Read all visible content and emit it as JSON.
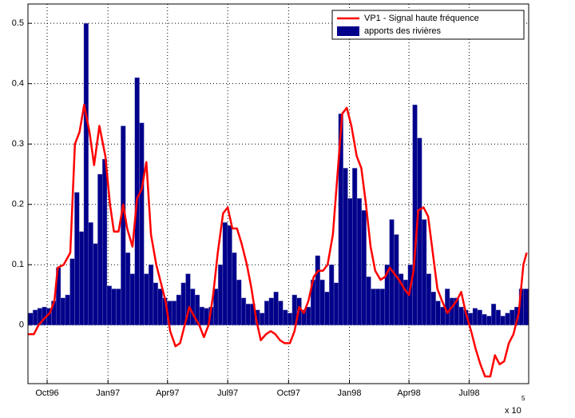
{
  "chart_data": {
    "type": "bar",
    "xlim": [
      -29,
      728
    ],
    "ylim": [
      -0.097,
      0.532
    ],
    "yticks": [
      0,
      0.1,
      0.2,
      0.3,
      0.4,
      0.5
    ],
    "xticks": [
      {
        "value": 0,
        "label": "Oct96"
      },
      {
        "value": 92,
        "label": "Jan97"
      },
      {
        "value": 182,
        "label": "Apr97"
      },
      {
        "value": 273,
        "label": "Jul97"
      },
      {
        "value": 365,
        "label": "Oct97"
      },
      {
        "value": 457,
        "label": "Jan98"
      },
      {
        "value": 547,
        "label": "Apr98"
      },
      {
        "value": 638,
        "label": "Jul98"
      }
    ],
    "grid": true,
    "legend": "upper right",
    "annotations": [
      "x 10",
      "5"
    ],
    "series": [
      {
        "name": "VP1 - Signal haute fréquence",
        "type": "line",
        "color": "#ff0000",
        "x": [
          -29,
          -20,
          -13,
          -5,
          4,
          11,
          16,
          25,
          35,
          42,
          49,
          56,
          64,
          71,
          79,
          88,
          95,
          101,
          108,
          115,
          121,
          129,
          136,
          143,
          150,
          157,
          165,
          172,
          179,
          186,
          194,
          201,
          208,
          215,
          222,
          230,
          237,
          244,
          251,
          258,
          266,
          273,
          280,
          287,
          294,
          302,
          309,
          316,
          323,
          331,
          338,
          345,
          352,
          359,
          367,
          374,
          381,
          388,
          395,
          403,
          410,
          417,
          424,
          432,
          439,
          446,
          453,
          460,
          468,
          475,
          482,
          489,
          496,
          504,
          511,
          518,
          525,
          532,
          540,
          547,
          554,
          561,
          569,
          576,
          583,
          590,
          597,
          605,
          612,
          619,
          626,
          633,
          641,
          648,
          655,
          662,
          670,
          677,
          684,
          691,
          698,
          705,
          713,
          720,
          725
        ],
        "values": [
          -0.015,
          -0.015,
          0.0,
          0.01,
          0.02,
          0.04,
          0.095,
          0.1,
          0.12,
          0.3,
          0.32,
          0.365,
          0.32,
          0.265,
          0.33,
          0.28,
          0.2,
          0.155,
          0.155,
          0.2,
          0.16,
          0.13,
          0.21,
          0.225,
          0.27,
          0.15,
          0.1,
          0.07,
          0.04,
          -0.01,
          -0.035,
          -0.03,
          0.0,
          0.03,
          0.015,
          0.0,
          -0.02,
          0.0,
          0.05,
          0.12,
          0.185,
          0.195,
          0.16,
          0.16,
          0.135,
          0.1,
          0.06,
          0.01,
          -0.025,
          -0.015,
          -0.01,
          -0.015,
          -0.025,
          -0.03,
          -0.03,
          -0.01,
          0.03,
          0.02,
          0.04,
          0.08,
          0.09,
          0.09,
          0.1,
          0.15,
          0.25,
          0.35,
          0.36,
          0.33,
          0.28,
          0.26,
          0.2,
          0.13,
          0.09,
          0.075,
          0.08,
          0.095,
          0.085,
          0.075,
          0.06,
          0.05,
          0.09,
          0.19,
          0.195,
          0.18,
          0.12,
          0.06,
          0.04,
          0.02,
          0.03,
          0.04,
          0.055,
          0.02,
          -0.01,
          -0.04,
          -0.065,
          -0.085,
          -0.085,
          -0.05,
          -0.065,
          -0.06,
          -0.03,
          -0.015,
          0.02,
          0.1,
          0.12
        ]
      },
      {
        "name": "apports des rivières",
        "type": "bar",
        "color": "#00008b",
        "x": [
          -25,
          -18,
          -11,
          -4,
          3,
          10,
          17,
          24,
          31,
          38,
          45,
          52,
          59,
          66,
          73,
          80,
          87,
          94,
          101,
          108,
          115,
          122,
          129,
          136,
          143,
          150,
          157,
          164,
          171,
          178,
          185,
          192,
          199,
          206,
          213,
          220,
          227,
          234,
          241,
          248,
          255,
          262,
          269,
          276,
          283,
          290,
          297,
          304,
          311,
          318,
          325,
          332,
          339,
          346,
          353,
          360,
          367,
          374,
          381,
          388,
          395,
          402,
          409,
          416,
          423,
          430,
          437,
          444,
          451,
          458,
          465,
          472,
          479,
          486,
          493,
          500,
          507,
          514,
          521,
          528,
          535,
          542,
          549,
          556,
          563,
          570,
          577,
          584,
          591,
          598,
          605,
          612,
          619,
          626,
          633,
          640,
          647,
          654,
          661,
          668,
          675,
          682,
          689,
          696,
          703,
          710,
          717,
          724
        ],
        "values": [
          0.02,
          0.025,
          0.028,
          0.03,
          0.028,
          0.04,
          0.095,
          0.045,
          0.05,
          0.11,
          0.22,
          0.155,
          0.5,
          0.17,
          0.135,
          0.25,
          0.275,
          0.065,
          0.06,
          0.06,
          0.33,
          0.12,
          0.085,
          0.41,
          0.335,
          0.085,
          0.1,
          0.07,
          0.06,
          0.045,
          0.04,
          0.04,
          0.05,
          0.07,
          0.085,
          0.06,
          0.05,
          0.03,
          0.028,
          0.03,
          0.06,
          0.1,
          0.17,
          0.165,
          0.12,
          0.075,
          0.045,
          0.035,
          0.035,
          0.025,
          0.02,
          0.04,
          0.045,
          0.055,
          0.04,
          0.025,
          0.02,
          0.05,
          0.045,
          0.025,
          0.03,
          0.075,
          0.115,
          0.075,
          0.055,
          0.1,
          0.07,
          0.35,
          0.26,
          0.21,
          0.26,
          0.21,
          0.19,
          0.08,
          0.06,
          0.06,
          0.06,
          0.1,
          0.175,
          0.15,
          0.085,
          0.075,
          0.1,
          0.365,
          0.31,
          0.175,
          0.085,
          0.055,
          0.04,
          0.03,
          0.06,
          0.045,
          0.045,
          0.03,
          0.025,
          0.02,
          0.028,
          0.025,
          0.018,
          0.015,
          0.035,
          0.025,
          0.015,
          0.02,
          0.025,
          0.03,
          0.06,
          0.06
        ]
      }
    ]
  }
}
